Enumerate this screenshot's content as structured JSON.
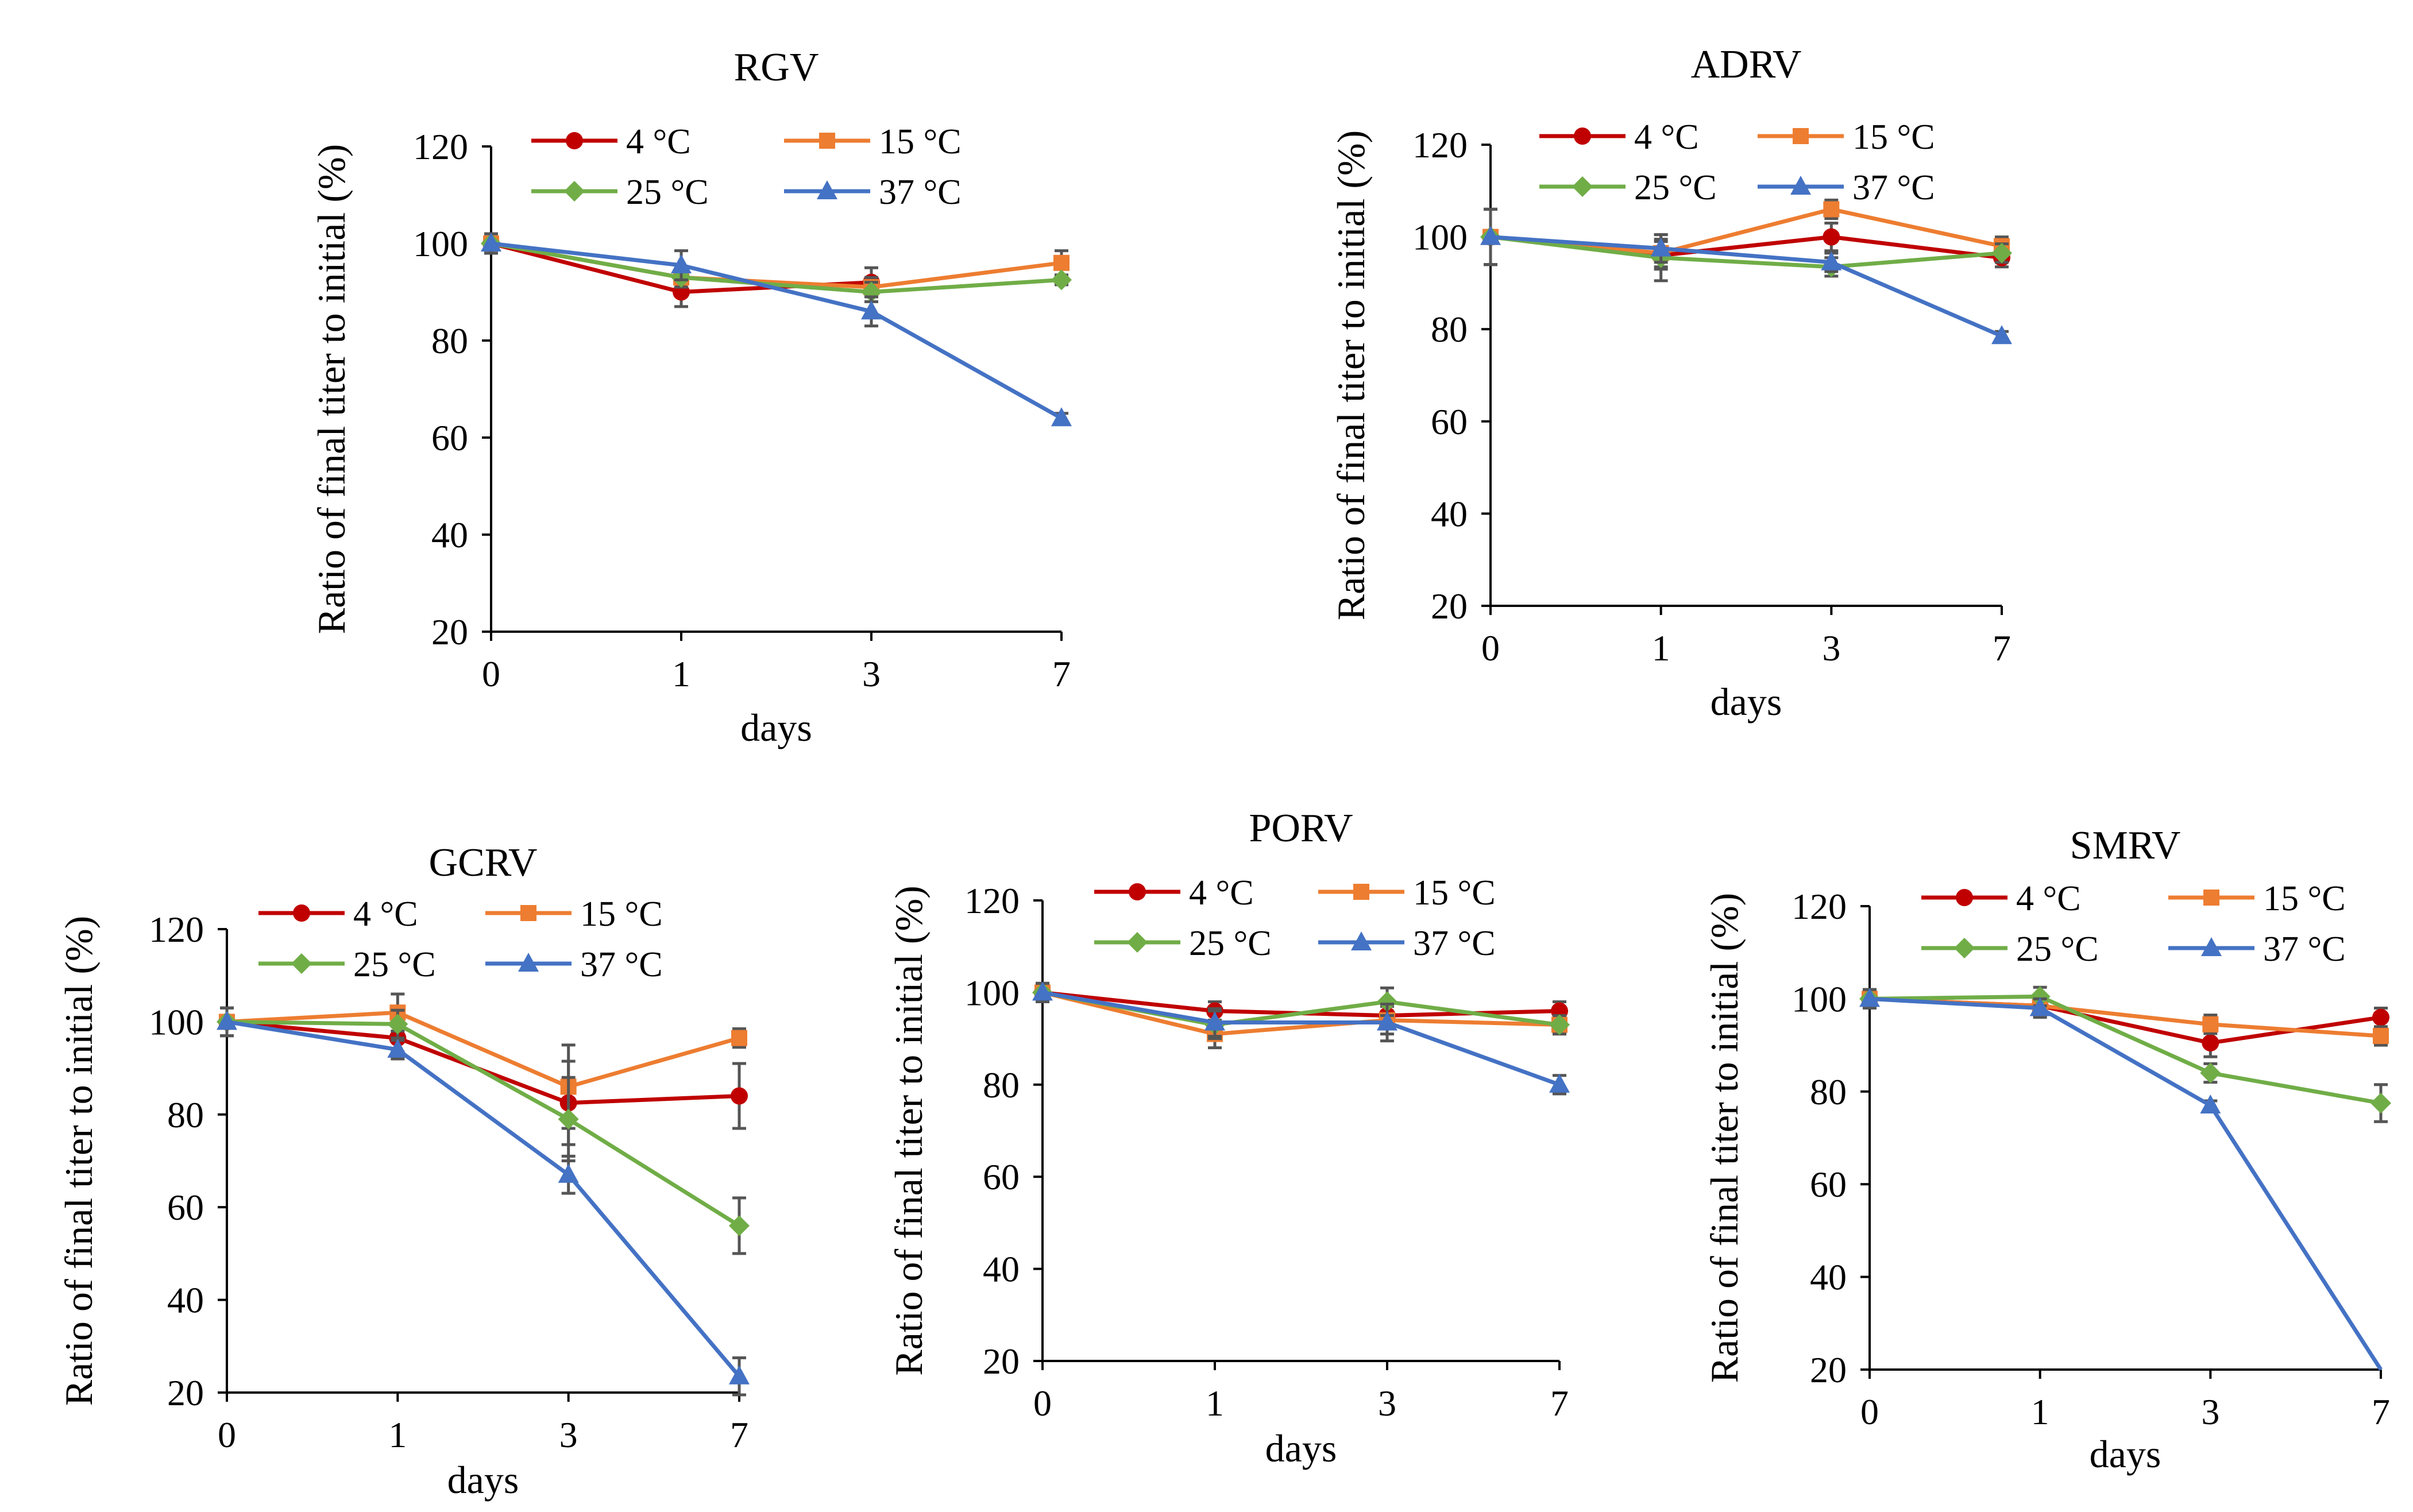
{
  "chart_data": [
    {
      "type": "line",
      "title": "RGV",
      "xlabel": "days",
      "ylabel": "Ratio of final titer to initial (%)",
      "categories": [
        "0",
        "1",
        "3",
        "7"
      ],
      "ylim": [
        20,
        120
      ],
      "yticks": [
        20,
        40,
        60,
        80,
        100,
        120
      ],
      "series": [
        {
          "name": "4 °C",
          "color": "#C00000",
          "marker": "circle",
          "values": [
            100,
            90,
            92,
            null
          ],
          "errors": [
            2,
            3,
            3,
            0
          ]
        },
        {
          "name": "15 °C",
          "color": "#ED7D31",
          "marker": "square",
          "values": [
            100,
            93,
            91,
            96
          ],
          "errors": [
            2,
            2,
            2,
            2.5
          ]
        },
        {
          "name": "25 °C",
          "color": "#70AD47",
          "marker": "diamond",
          "values": [
            100,
            93,
            90,
            92.5
          ],
          "errors": [
            2,
            2,
            2,
            1
          ]
        },
        {
          "name": "37 °C",
          "color": "#4472C4",
          "marker": "triangle",
          "values": [
            100,
            95.5,
            86,
            64
          ],
          "errors": [
            2,
            3,
            3,
            1
          ]
        }
      ]
    },
    {
      "type": "line",
      "title": "ADRV",
      "xlabel": "days",
      "ylabel": "Ratio of final titer to initial (%)",
      "categories": [
        "0",
        "1",
        "3",
        "7"
      ],
      "ylim": [
        20,
        120
      ],
      "yticks": [
        20,
        40,
        60,
        80,
        100,
        120
      ],
      "series": [
        {
          "name": "4 °C",
          "color": "#C00000",
          "marker": "circle",
          "values": [
            100,
            96,
            100,
            95.5
          ],
          "errors": [
            6,
            3,
            3,
            2
          ]
        },
        {
          "name": "15 °C",
          "color": "#ED7D31",
          "marker": "square",
          "values": [
            100,
            96.5,
            106,
            98
          ],
          "errors": [
            6,
            3,
            2,
            2
          ]
        },
        {
          "name": "25 °C",
          "color": "#70AD47",
          "marker": "diamond",
          "values": [
            100,
            95.5,
            93.5,
            96.5
          ],
          "errors": [
            6,
            5,
            2,
            2
          ]
        },
        {
          "name": "37 °C",
          "color": "#4472C4",
          "marker": "triangle",
          "values": [
            100,
            97.5,
            94.5,
            78.5
          ],
          "errors": [
            6,
            3,
            2,
            1
          ]
        }
      ]
    },
    {
      "type": "line",
      "title": "GCRV",
      "xlabel": "days",
      "ylabel": "Ratio of final titer to initial (%)",
      "categories": [
        "0",
        "1",
        "3",
        "7"
      ],
      "ylim": [
        20,
        120
      ],
      "yticks": [
        20,
        40,
        60,
        80,
        100,
        120
      ],
      "series": [
        {
          "name": "4 °C",
          "color": "#C00000",
          "marker": "circle",
          "values": [
            100,
            96.5,
            82.5,
            84
          ],
          "errors": [
            3,
            3,
            9,
            7
          ]
        },
        {
          "name": "15 °C",
          "color": "#ED7D31",
          "marker": "square",
          "values": [
            100,
            102,
            86,
            96.5
          ],
          "errors": [
            3,
            4,
            9,
            2
          ]
        },
        {
          "name": "25 °C",
          "color": "#70AD47",
          "marker": "diamond",
          "values": [
            100,
            99.5,
            79,
            56
          ],
          "errors": [
            3,
            3,
            9,
            6
          ]
        },
        {
          "name": "37 °C",
          "color": "#4472C4",
          "marker": "triangle",
          "values": [
            100,
            94,
            67,
            23.5
          ],
          "errors": [
            3,
            2,
            4,
            4
          ]
        }
      ]
    },
    {
      "type": "line",
      "title": "PORV",
      "xlabel": "days",
      "ylabel": "Ratio of final titer to initial (%)",
      "categories": [
        "0",
        "1",
        "3",
        "7"
      ],
      "ylim": [
        20,
        120
      ],
      "yticks": [
        20,
        40,
        60,
        80,
        100,
        120
      ],
      "series": [
        {
          "name": "4 °C",
          "color": "#C00000",
          "marker": "circle",
          "values": [
            100,
            96,
            95,
            96
          ],
          "errors": [
            2,
            2,
            2,
            2
          ]
        },
        {
          "name": "15 °C",
          "color": "#ED7D31",
          "marker": "square",
          "values": [
            100,
            91,
            94,
            93
          ],
          "errors": [
            2,
            3,
            3,
            2
          ]
        },
        {
          "name": "25 °C",
          "color": "#70AD47",
          "marker": "diamond",
          "values": [
            100,
            93,
            98,
            93
          ],
          "errors": [
            2,
            3,
            3,
            2
          ]
        },
        {
          "name": "37 °C",
          "color": "#4472C4",
          "marker": "triangle",
          "values": [
            100,
            93.5,
            93.5,
            80
          ],
          "errors": [
            2,
            3,
            4,
            2
          ]
        }
      ]
    },
    {
      "type": "line",
      "title": "SMRV",
      "xlabel": "days",
      "ylabel": "Ratio of final titer to initial (%)",
      "categories": [
        "0",
        "1",
        "3",
        "7"
      ],
      "ylim": [
        20,
        120
      ],
      "yticks": [
        20,
        40,
        60,
        80,
        100,
        120
      ],
      "series": [
        {
          "name": "4 °C",
          "color": "#C00000",
          "marker": "circle",
          "values": [
            100,
            98.5,
            90.5,
            96
          ],
          "errors": [
            2,
            2,
            3,
            2
          ]
        },
        {
          "name": "15 °C",
          "color": "#ED7D31",
          "marker": "square",
          "values": [
            100,
            98.5,
            94.5,
            92
          ],
          "errors": [
            2,
            2,
            2,
            2
          ]
        },
        {
          "name": "25 °C",
          "color": "#70AD47",
          "marker": "diamond",
          "values": [
            100,
            100.5,
            84,
            77.5
          ],
          "errors": [
            2,
            2,
            2,
            4
          ]
        },
        {
          "name": "37 °C",
          "color": "#4472C4",
          "marker": "triangle",
          "values": [
            100,
            98,
            77,
            20
          ],
          "errors": [
            2,
            2,
            1,
            0
          ]
        }
      ]
    }
  ]
}
